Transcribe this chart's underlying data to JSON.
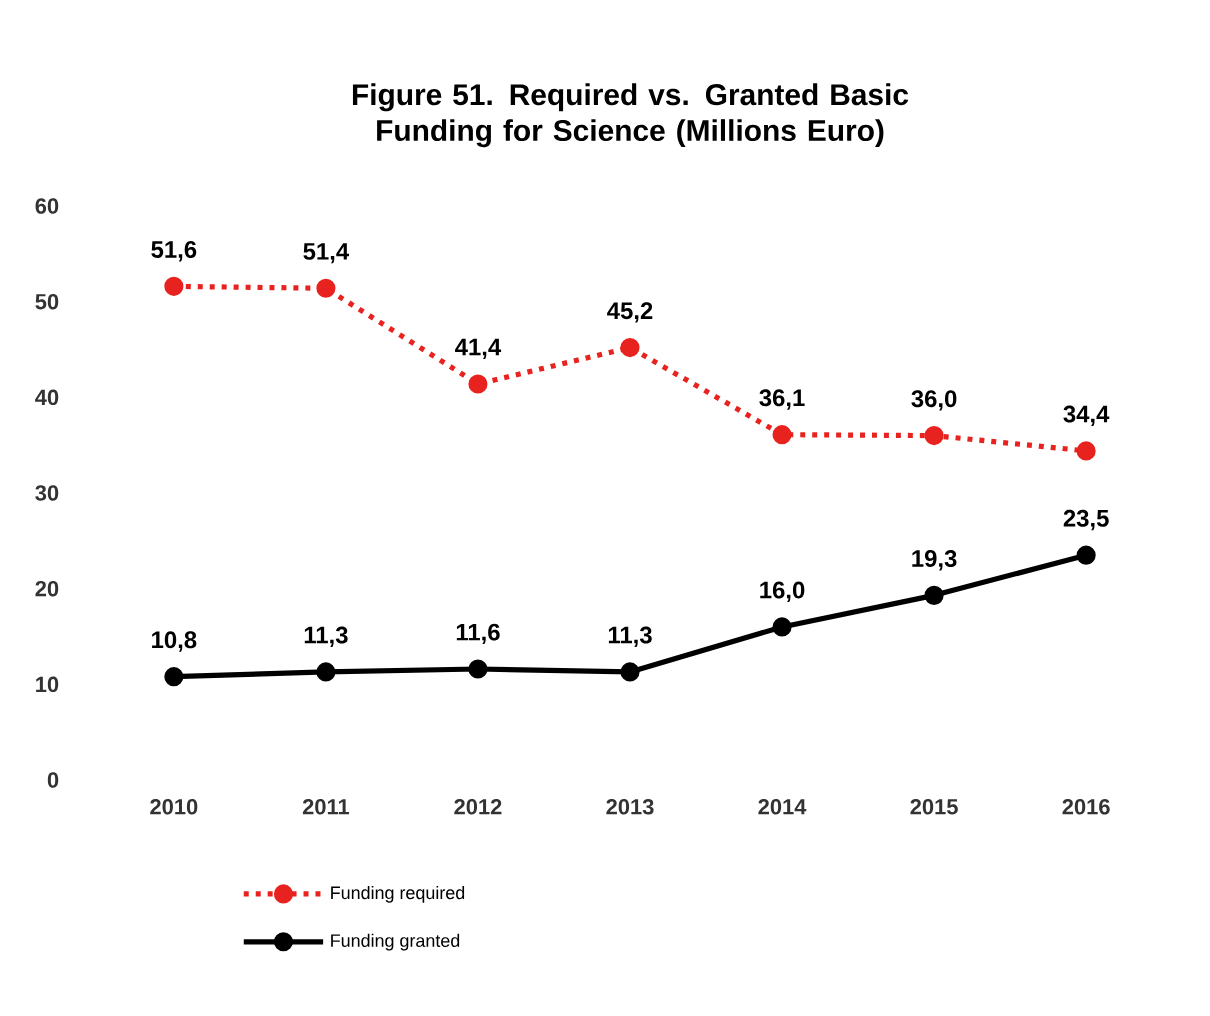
{
  "chart_data": {
    "type": "line",
    "title": "Figure 51. Required vs. Granted Basic Funding for Science (Millions Euro)",
    "categories": [
      "2010",
      "2011",
      "2012",
      "2013",
      "2014",
      "2015",
      "2016"
    ],
    "series": [
      {
        "name": "Funding required",
        "color": "#e8231f",
        "line_style": "dotted",
        "values": [
          51.6,
          51.4,
          41.4,
          45.2,
          36.1,
          36.0,
          34.4
        ],
        "value_labels": [
          "51,6",
          "51,4",
          "41,4",
          "45,2",
          "36,1",
          "36,0",
          "34,4"
        ]
      },
      {
        "name": "Funding granted",
        "color": "#000000",
        "line_style": "solid",
        "values": [
          10.8,
          11.3,
          11.6,
          11.3,
          16.0,
          19.3,
          23.5
        ],
        "value_labels": [
          "10,8",
          "11,3",
          "11,6",
          "11,3",
          "16,0",
          "19,3",
          "23,5"
        ]
      }
    ],
    "ylim": [
      0,
      60
    ],
    "yticks": [
      0,
      10,
      20,
      30,
      40,
      50,
      60
    ],
    "grid": false,
    "legend": "bottom",
    "marker": "circle"
  }
}
